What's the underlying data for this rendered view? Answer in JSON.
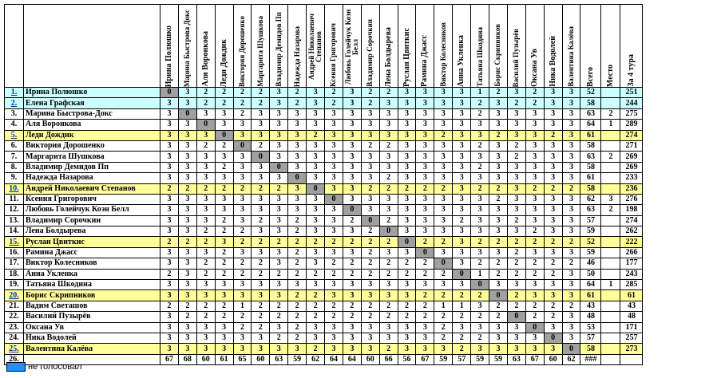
{
  "headers": [
    "Ирина Полюшко",
    "Марина Быстрова Докс",
    "Аля Воронкова",
    "Леди Дождик",
    "Виктория Дорошенко",
    "Маргарита Шушкова",
    "Владимир Демидов Пп",
    "Надежда Назарова",
    "Андрей Николаевич Степанов",
    "Ксения Григорович",
    "Любовь Голейчук Коэн Белл",
    "Владимир Сорочкин",
    "Лена Болдырева",
    "Руслан Цвиткис",
    "Рамина Джасс",
    "Виктор Колесников",
    "Анна Укленка",
    "Татьяна Шкодина",
    "Борис Скрипников",
    "Василий Пузырёв",
    "Оксана Ув",
    "Ника Водолей",
    "Валентина Калёва"
  ],
  "summary_headers": [
    "Всего",
    "Место",
    "За 4 тура"
  ],
  "rows": [
    {
      "n": "1.",
      "name": "Ирина Полюшко",
      "style": "cyan",
      "v": [
        "0",
        "3",
        "2",
        "2",
        "2",
        "2",
        "3",
        "2",
        "3",
        "2",
        "3",
        "2",
        "2",
        "3",
        "3",
        "3",
        "3",
        "1",
        "2",
        "3",
        "2",
        "3",
        "3"
      ],
      "total": "52",
      "place": "",
      "t4": "251"
    },
    {
      "n": "2.",
      "name": "Елена Графская",
      "style": "cyan",
      "v": [
        "3",
        "3",
        "2",
        "2",
        "2",
        "2",
        "3",
        "2",
        "3",
        "2",
        "3",
        "2",
        "3",
        "3",
        "3",
        "3",
        "3",
        "2",
        "3",
        "2",
        "2",
        "3",
        "3"
      ],
      "total": "58",
      "place": "",
      "t4": "244"
    },
    {
      "n": "3.",
      "name": "Марина Быстрова-Докс",
      "style": "",
      "v": [
        "3",
        "0",
        "3",
        "3",
        "2",
        "3",
        "3",
        "3",
        "3",
        "3",
        "3",
        "3",
        "3",
        "3",
        "3",
        "3",
        "3",
        "2",
        "3",
        "3",
        "3",
        "3",
        "3"
      ],
      "total": "63",
      "place": "2",
      "t4": "275"
    },
    {
      "n": "4.",
      "name": "Аля Воронкова",
      "style": "",
      "v": [
        "3",
        "3",
        "0",
        "3",
        "3",
        "3",
        "3",
        "3",
        "3",
        "3",
        "3",
        "3",
        "3",
        "3",
        "3",
        "3",
        "3",
        "3",
        "3",
        "3",
        "3",
        "3",
        "3"
      ],
      "total": "64",
      "place": "1",
      "t4": "289"
    },
    {
      "n": "5.",
      "name": "Леди Дождик",
      "style": "yel",
      "v": [
        "3",
        "3",
        "3",
        "0",
        "3",
        "3",
        "3",
        "3",
        "2",
        "3",
        "3",
        "3",
        "3",
        "3",
        "3",
        "2",
        "3",
        "3",
        "2",
        "3",
        "3",
        "2",
        "3"
      ],
      "total": "61",
      "place": "",
      "t4": "274"
    },
    {
      "n": "6.",
      "name": "Виктория Дорошенко",
      "style": "",
      "v": [
        "3",
        "3",
        "2",
        "2",
        "0",
        "2",
        "3",
        "3",
        "3",
        "3",
        "3",
        "2",
        "2",
        "3",
        "3",
        "3",
        "3",
        "2",
        "3",
        "2",
        "3",
        "3",
        "3"
      ],
      "total": "58",
      "place": "",
      "t4": "271"
    },
    {
      "n": "7.",
      "name": "Маргарита Шушкова",
      "style": "",
      "v": [
        "3",
        "3",
        "3",
        "3",
        "3",
        "0",
        "3",
        "3",
        "3",
        "3",
        "3",
        "3",
        "3",
        "3",
        "3",
        "3",
        "3",
        "3",
        "3",
        "2",
        "3",
        "3",
        "3"
      ],
      "total": "63",
      "place": "2",
      "t4": "269"
    },
    {
      "n": "8.",
      "name": "Владимир Демидов Пп",
      "style": "",
      "v": [
        "3",
        "3",
        "3",
        "2",
        "3",
        "3",
        "0",
        "3",
        "3",
        "3",
        "3",
        "3",
        "3",
        "3",
        "3",
        "3",
        "3",
        "2",
        "3",
        "3",
        "3",
        "3",
        "3"
      ],
      "total": "58",
      "place": "",
      "t4": "269"
    },
    {
      "n": "9.",
      "name": "Надежда Назарова",
      "style": "",
      "v": [
        "3",
        "3",
        "3",
        "3",
        "3",
        "3",
        "3",
        "0",
        "3",
        "3",
        "3",
        "3",
        "2",
        "3",
        "3",
        "3",
        "3",
        "3",
        "3",
        "3",
        "3",
        "3",
        "3"
      ],
      "total": "61",
      "place": "",
      "t4": "233"
    },
    {
      "n": "10.",
      "name": "Андрей Николаевич Степанов",
      "style": "yel",
      "v": [
        "2",
        "2",
        "2",
        "2",
        "2",
        "2",
        "2",
        "3",
        "0",
        "3",
        "3",
        "2",
        "2",
        "2",
        "2",
        "2",
        "3",
        "2",
        "2",
        "3",
        "2",
        "2",
        "2"
      ],
      "total": "58",
      "place": "",
      "t4": "236"
    },
    {
      "n": "11.",
      "name": "Ксения Григорович",
      "style": "",
      "v": [
        "3",
        "3",
        "3",
        "3",
        "3",
        "3",
        "3",
        "3",
        "3",
        "0",
        "3",
        "3",
        "3",
        "3",
        "3",
        "3",
        "3",
        "3",
        "2",
        "3",
        "3",
        "3",
        "3"
      ],
      "total": "62",
      "place": "3",
      "t4": "276"
    },
    {
      "n": "12.",
      "name": "Любовь Голейчук Коэн Белл",
      "style": "",
      "v": [
        "3",
        "3",
        "3",
        "3",
        "3",
        "3",
        "3",
        "3",
        "3",
        "3",
        "0",
        "3",
        "3",
        "3",
        "3",
        "3",
        "3",
        "3",
        "3",
        "3",
        "3",
        "3",
        "3"
      ],
      "total": "63",
      "place": "2",
      "t4": "198"
    },
    {
      "n": "13.",
      "name": "Владимир Сорочкин",
      "style": "",
      "v": [
        "3",
        "3",
        "3",
        "2",
        "3",
        "2",
        "3",
        "2",
        "3",
        "3",
        "2",
        "0",
        "2",
        "3",
        "3",
        "3",
        "2",
        "3",
        "3",
        "2",
        "3",
        "3",
        "3"
      ],
      "total": "57",
      "place": "",
      "t4": "274"
    },
    {
      "n": "14.",
      "name": "Лена Болдырева",
      "style": "",
      "v": [
        "3",
        "3",
        "2",
        "2",
        "2",
        "3",
        "3",
        "2",
        "3",
        "3",
        "3",
        "2",
        "0",
        "3",
        "3",
        "3",
        "3",
        "3",
        "3",
        "3",
        "2",
        "3",
        "3"
      ],
      "total": "59",
      "place": "",
      "t4": "262"
    },
    {
      "n": "15.",
      "name": "Руслан Цвиткис",
      "style": "yel",
      "v": [
        "2",
        "2",
        "2",
        "3",
        "2",
        "2",
        "2",
        "2",
        "2",
        "2",
        "2",
        "2",
        "2",
        "0",
        "2",
        "2",
        "3",
        "2",
        "2",
        "2",
        "2",
        "2",
        "2"
      ],
      "total": "52",
      "place": "",
      "t4": "222"
    },
    {
      "n": "16.",
      "name": "Рамина Джасс",
      "style": "",
      "v": [
        "3",
        "3",
        "3",
        "2",
        "3",
        "3",
        "3",
        "2",
        "3",
        "3",
        "3",
        "2",
        "3",
        "3",
        "0",
        "3",
        "3",
        "3",
        "3",
        "2",
        "3",
        "3",
        "3"
      ],
      "total": "59",
      "place": "",
      "t4": "266"
    },
    {
      "n": "17.",
      "name": "Виктор Колесников",
      "style": "",
      "v": [
        "3",
        "3",
        "2",
        "2",
        "2",
        "2",
        "3",
        "2",
        "3",
        "2",
        "2",
        "2",
        "2",
        "2",
        "2",
        "0",
        "3",
        "2",
        "2",
        "2",
        "2",
        "2",
        "2"
      ],
      "total": "46",
      "place": "",
      "t4": "177"
    },
    {
      "n": "18.",
      "name": "Анна Укленка",
      "style": "",
      "v": [
        "2",
        "3",
        "2",
        "2",
        "2",
        "2",
        "2",
        "2",
        "2",
        "2",
        "2",
        "2",
        "2",
        "2",
        "2",
        "2",
        "0",
        "1",
        "2",
        "2",
        "2",
        "2",
        "3"
      ],
      "total": "50",
      "place": "",
      "t4": "243"
    },
    {
      "n": "19.",
      "name": "Татьяна Шкодина",
      "style": "",
      "v": [
        "3",
        "3",
        "3",
        "3",
        "3",
        "3",
        "3",
        "3",
        "3",
        "3",
        "3",
        "3",
        "3",
        "3",
        "3",
        "3",
        "3",
        "0",
        "3",
        "3",
        "3",
        "3",
        "3"
      ],
      "total": "64",
      "place": "1",
      "t4": "285"
    },
    {
      "n": "20.",
      "name": "Борис Скрипников",
      "style": "yel",
      "v": [
        "3",
        "3",
        "3",
        "3",
        "3",
        "3",
        "3",
        "2",
        "2",
        "3",
        "3",
        "3",
        "3",
        "3",
        "2",
        "2",
        "2",
        "2",
        "0",
        "2",
        "3",
        "3",
        "3"
      ],
      "total": "61",
      "place": "",
      "t4": "61"
    },
    {
      "n": "21.",
      "name": "Вадим Светашов",
      "style": "",
      "v": [
        "2",
        "2",
        "2",
        "2",
        "1",
        "2",
        "2",
        "2",
        "2",
        "2",
        "2",
        "2",
        "2",
        "2",
        "2",
        "1",
        "1",
        "3",
        "2",
        "2",
        "2",
        "2",
        "2"
      ],
      "total": "43",
      "place": "",
      "t4": "43"
    },
    {
      "n": "22.",
      "name": "Василий Пузырёв",
      "style": "",
      "v": [
        "3",
        "2",
        "2",
        "2",
        "2",
        "2",
        "2",
        "2",
        "2",
        "2",
        "2",
        "2",
        "2",
        "2",
        "2",
        "2",
        "2",
        "2",
        "2",
        "0",
        "2",
        "2",
        "3"
      ],
      "total": "48",
      "place": "",
      "t4": "48"
    },
    {
      "n": "23.",
      "name": "Оксана Ув",
      "style": "",
      "v": [
        "3",
        "3",
        "3",
        "3",
        "2",
        "2",
        "3",
        "2",
        "3",
        "3",
        "3",
        "3",
        "3",
        "3",
        "3",
        "2",
        "3",
        "3",
        "3",
        "3",
        "0",
        "3",
        "3"
      ],
      "total": "53",
      "place": "",
      "t4": "171"
    },
    {
      "n": "24.",
      "name": "Ника Водолей",
      "style": "",
      "v": [
        "3",
        "3",
        "3",
        "3",
        "3",
        "3",
        "2",
        "2",
        "3",
        "3",
        "3",
        "3",
        "3",
        "3",
        "3",
        "2",
        "2",
        "2",
        "3",
        "3",
        "3",
        "0",
        "3"
      ],
      "total": "57",
      "place": "",
      "t4": "257"
    },
    {
      "n": "25.",
      "name": "Валентина Калёва",
      "style": "yel",
      "v": [
        "3",
        "3",
        "3",
        "3",
        "3",
        "3",
        "3",
        "3",
        "2",
        "3",
        "3",
        "3",
        "2",
        "3",
        "3",
        "3",
        "2",
        "3",
        "3",
        "3",
        "3",
        "3",
        "0"
      ],
      "total": "58",
      "place": "",
      "t4": "273"
    }
  ],
  "totals_row": {
    "n": "26.",
    "v": [
      "67",
      "68",
      "60",
      "61",
      "65",
      "60",
      "63",
      "59",
      "62",
      "64",
      "64",
      "60",
      "66",
      "56",
      "67",
      "59",
      "57",
      "59",
      "59",
      "63",
      "67",
      "60",
      "62"
    ],
    "total": "###"
  },
  "legend": {
    "color": "#1e90ff",
    "label": "не голосовал"
  }
}
